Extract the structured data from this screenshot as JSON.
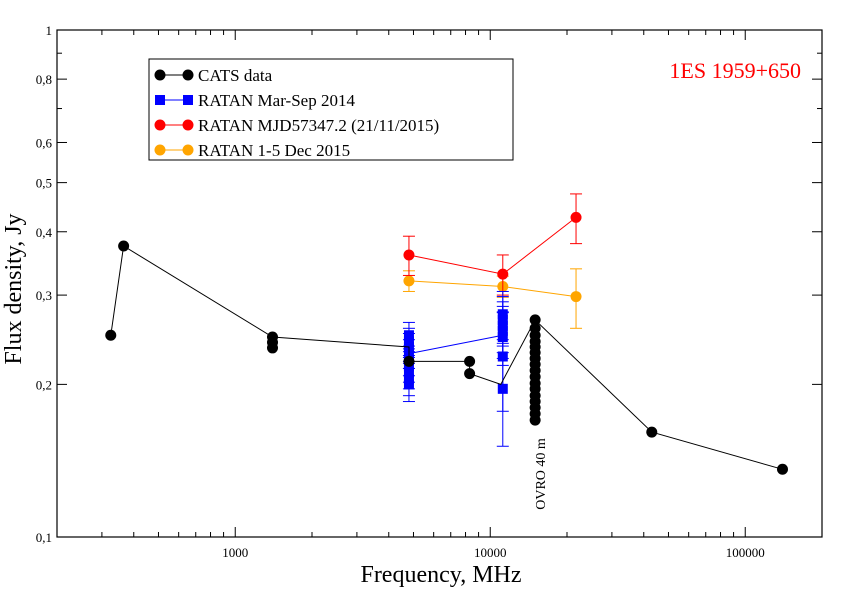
{
  "chart_data": {
    "type": "scatter",
    "title": "1ES 1959+650",
    "title_color": "#ff0000",
    "xlabel": "Frequency, MHz",
    "ylabel": "Flux density, Jy",
    "xscale": "log",
    "yscale": "log",
    "xlim": [
      200,
      200000
    ],
    "ylim": [
      0.1,
      1
    ],
    "x_ticks": [
      {
        "value": 1000,
        "label": "1000"
      },
      {
        "value": 10000,
        "label": "10000"
      },
      {
        "value": 100000,
        "label": "100000"
      }
    ],
    "y_ticks": [
      {
        "value": 0.1,
        "label": "0,1"
      },
      {
        "value": 0.2,
        "label": "0,2"
      },
      {
        "value": 0.3,
        "label": "0,3"
      },
      {
        "value": 0.4,
        "label": "0,4"
      },
      {
        "value": 0.5,
        "label": "0,5"
      },
      {
        "value": 0.6,
        "label": "0,6"
      },
      {
        "value": 0.8,
        "label": "0,8"
      },
      {
        "value": 1,
        "label": "1"
      }
    ],
    "grid": false,
    "legend_position": "top-left",
    "annotation": {
      "text": "OVRO 40 m",
      "x": 15000,
      "y": 0.14
    },
    "series": [
      {
        "name": "CATS data",
        "color": "#000000",
        "marker": "circle",
        "line": [
          [
            325,
            0.25
          ],
          [
            365,
            0.375
          ],
          [
            1400,
            0.248
          ],
          [
            4800,
            0.237
          ],
          [
            4800,
            0.222
          ],
          [
            8300,
            0.222
          ],
          [
            8300,
            0.21
          ],
          [
            11000,
            0.2
          ],
          [
            15000,
            0.268
          ],
          [
            43000,
            0.161
          ],
          [
            140000,
            0.136
          ]
        ],
        "points": [
          {
            "x": 325,
            "y": 0.25
          },
          {
            "x": 365,
            "y": 0.375
          },
          {
            "x": 1400,
            "y": 0.248
          },
          {
            "x": 1400,
            "y": 0.242
          },
          {
            "x": 1400,
            "y": 0.236
          },
          {
            "x": 4800,
            "y": 0.222
          },
          {
            "x": 8300,
            "y": 0.222
          },
          {
            "x": 8300,
            "y": 0.21
          },
          {
            "x": 15000,
            "y": 0.268
          },
          {
            "x": 15000,
            "y": 0.258
          },
          {
            "x": 15000,
            "y": 0.25
          },
          {
            "x": 15000,
            "y": 0.243
          },
          {
            "x": 15000,
            "y": 0.237
          },
          {
            "x": 15000,
            "y": 0.231
          },
          {
            "x": 15000,
            "y": 0.225
          },
          {
            "x": 15000,
            "y": 0.219
          },
          {
            "x": 15000,
            "y": 0.213
          },
          {
            "x": 15000,
            "y": 0.207
          },
          {
            "x": 15000,
            "y": 0.201
          },
          {
            "x": 15000,
            "y": 0.196
          },
          {
            "x": 15000,
            "y": 0.19
          },
          {
            "x": 15000,
            "y": 0.185
          },
          {
            "x": 15000,
            "y": 0.18
          },
          {
            "x": 15000,
            "y": 0.175
          },
          {
            "x": 15000,
            "y": 0.17
          },
          {
            "x": 43000,
            "y": 0.161
          },
          {
            "x": 140000,
            "y": 0.136
          }
        ]
      },
      {
        "name": "RATAN Mar-Sep 2014",
        "color": "#0000ff",
        "marker": "square",
        "line": [
          [
            4800,
            0.23
          ],
          [
            11200,
            0.25
          ]
        ],
        "points": [
          {
            "x": 4800,
            "y": 0.25,
            "err": 0.015
          },
          {
            "x": 4800,
            "y": 0.243,
            "err": 0.015
          },
          {
            "x": 4800,
            "y": 0.237,
            "err": 0.015
          },
          {
            "x": 4800,
            "y": 0.23,
            "err": 0.015
          },
          {
            "x": 4800,
            "y": 0.223,
            "err": 0.015
          },
          {
            "x": 4800,
            "y": 0.217,
            "err": 0.015
          },
          {
            "x": 4800,
            "y": 0.211,
            "err": 0.015
          },
          {
            "x": 4800,
            "y": 0.205,
            "err": 0.015
          },
          {
            "x": 4800,
            "y": 0.2,
            "err": 0.015
          },
          {
            "x": 11200,
            "y": 0.275,
            "err": 0.03
          },
          {
            "x": 11200,
            "y": 0.268,
            "err": 0.03
          },
          {
            "x": 11200,
            "y": 0.261,
            "err": 0.03
          },
          {
            "x": 11200,
            "y": 0.255,
            "err": 0.03
          },
          {
            "x": 11200,
            "y": 0.248,
            "err": 0.03
          },
          {
            "x": 11200,
            "y": 0.227,
            "err": 0.05
          },
          {
            "x": 11200,
            "y": 0.196,
            "err": 0.045
          }
        ]
      },
      {
        "name": "RATAN  MJD57347.2 (21/11/2015)",
        "color": "#ff0000",
        "marker": "circle",
        "line": [
          [
            4800,
            0.36
          ],
          [
            11200,
            0.33
          ],
          [
            21700,
            0.427
          ]
        ],
        "points": [
          {
            "x": 4800,
            "y": 0.36,
            "err": 0.032
          },
          {
            "x": 11200,
            "y": 0.33,
            "err": 0.03
          },
          {
            "x": 21700,
            "y": 0.427,
            "err": 0.048
          }
        ]
      },
      {
        "name": "RATAN 1-5 Dec 2015",
        "color": "#ffa500",
        "marker": "circle",
        "line": [
          [
            4800,
            0.32
          ],
          [
            11200,
            0.312
          ],
          [
            21700,
            0.298
          ]
        ],
        "points": [
          {
            "x": 4800,
            "y": 0.32,
            "err": 0.015
          },
          {
            "x": 11200,
            "y": 0.312,
            "err": 0.015
          },
          {
            "x": 21700,
            "y": 0.298,
            "err": 0.04
          }
        ]
      }
    ]
  }
}
